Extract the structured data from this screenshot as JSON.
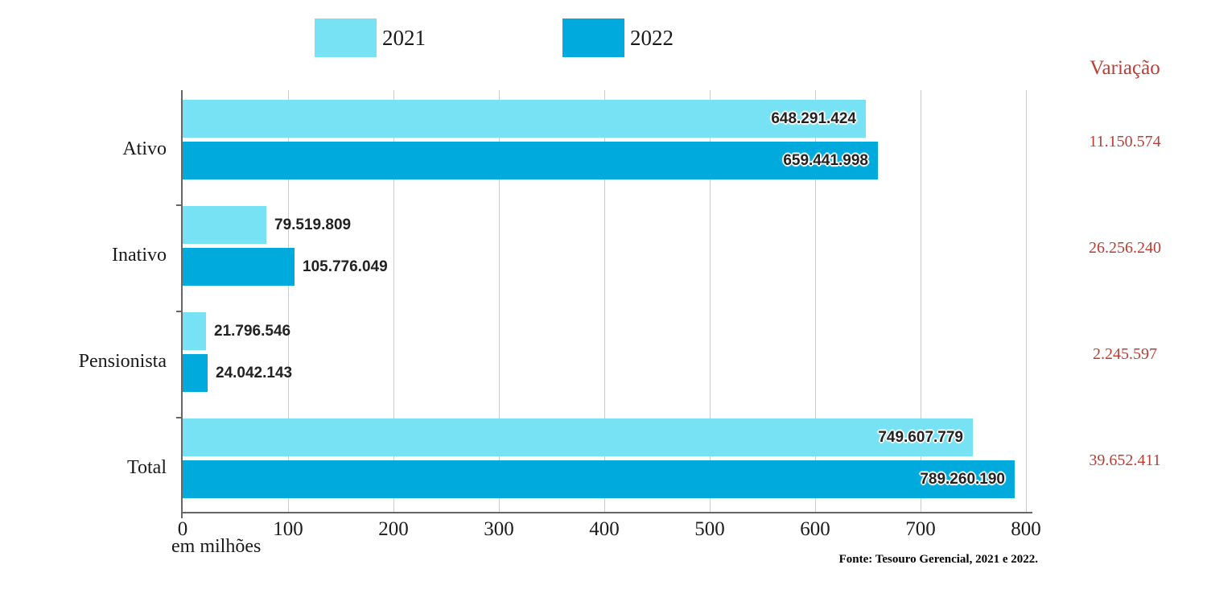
{
  "legend": [
    {
      "label": "2021",
      "color": "#76e2f3"
    },
    {
      "label": "2022",
      "color": "#00aadd"
    }
  ],
  "variation_column": {
    "header": "Variação",
    "values": [
      "11.150.574",
      "26.256.240",
      "2.245.597",
      "39.652.411"
    ],
    "color": "#ba3e35"
  },
  "chart_data": {
    "type": "bar",
    "orientation": "horizontal",
    "categories": [
      "Ativo",
      "Inativo",
      "Pensionista",
      "Total"
    ],
    "series": [
      {
        "name": "2021",
        "color": "#76e2f3",
        "values_millions": [
          648.291424,
          79.519809,
          21.796546,
          749.607779
        ],
        "value_labels": [
          "648.291.424",
          "79.519.809",
          "21.796.546",
          "749.607.779"
        ]
      },
      {
        "name": "2022",
        "color": "#00aadd",
        "values_millions": [
          659.441998,
          105.776049,
          24.042143,
          789.26019
        ],
        "value_labels": [
          "659.441.998",
          "105.776.049",
          "24.042.143",
          "789.260.190"
        ]
      }
    ],
    "xlabel": "em milhões",
    "x_ticks": [
      "0",
      "100",
      "200",
      "300",
      "400",
      "500",
      "600",
      "700",
      "800"
    ],
    "xlim": [
      0,
      800
    ],
    "grid": true,
    "legend_position": "top"
  },
  "footer": {
    "source": "Fonte: Tesouro Gerencial, 2021 e 2022."
  }
}
